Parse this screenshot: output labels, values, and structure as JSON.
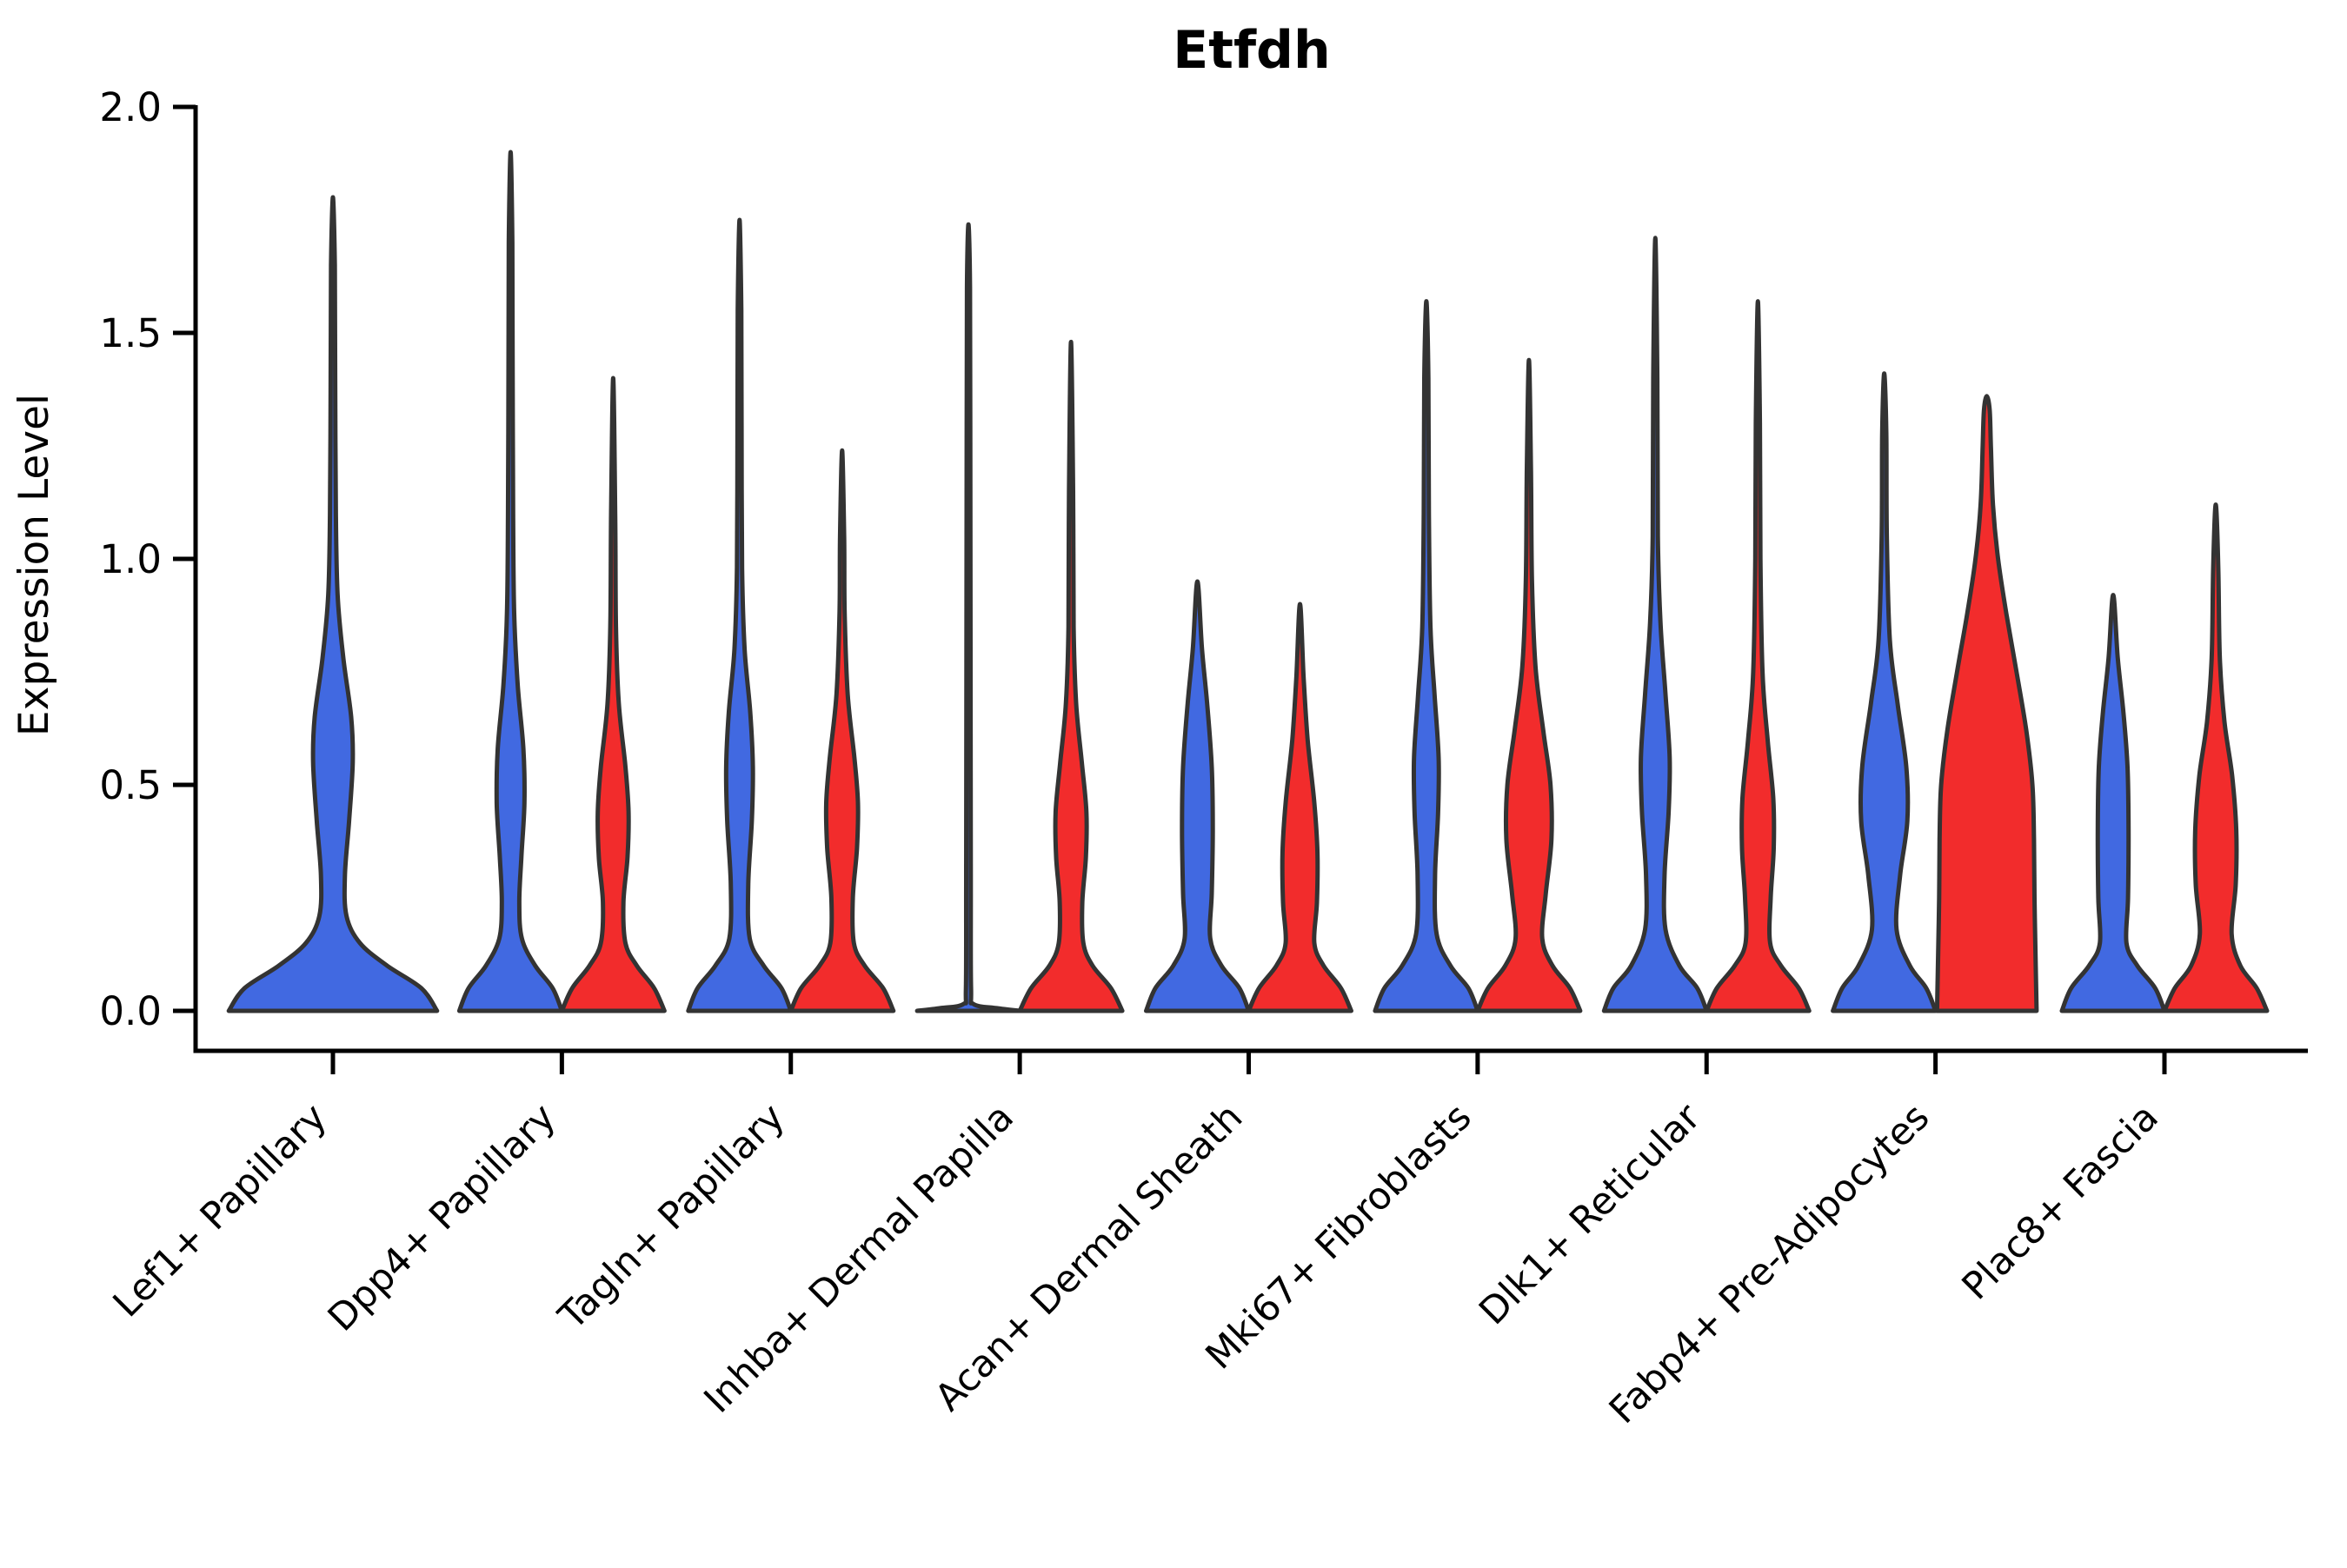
{
  "chart_data": {
    "type": "violin",
    "title": "Etfdh",
    "xlabel": "",
    "ylabel": "Expression Level",
    "ylim": [
      0.0,
      2.0
    ],
    "yticks": [
      {
        "value": 0.0,
        "label": "0.0"
      },
      {
        "value": 0.5,
        "label": "0.5"
      },
      {
        "value": 1.0,
        "label": "1.0"
      },
      {
        "value": 1.5,
        "label": "1.5"
      },
      {
        "value": 2.0,
        "label": "2.0"
      }
    ],
    "grid": false,
    "legend": "none",
    "x_tick_rotation": 45,
    "colors": {
      "blue": "#4169E1",
      "red": "#F22C2C",
      "outline": "#333333",
      "axis": "#000000"
    },
    "categories": [
      "Lef1+ Papillary",
      "Dpp4+ Papillary",
      "Tagln+ Papillary",
      "Inhba+ Dermal Papilla",
      "Acan+ Dermal Sheath",
      "Mki67+ Fibroblasts",
      "Dlk1+ Reticular",
      "Fabp4+ Pre-Adipocytes",
      "Plac8+ Fascia"
    ],
    "violins": [
      {
        "category": 0,
        "color": "blue",
        "position": "solo",
        "max_expression": 1.8,
        "profile": [
          [
            0,
            1.0
          ],
          [
            0.05,
            0.85
          ],
          [
            0.1,
            0.52
          ],
          [
            0.15,
            0.26
          ],
          [
            0.21,
            0.13
          ],
          [
            0.3,
            0.115
          ],
          [
            0.42,
            0.155
          ],
          [
            0.55,
            0.19
          ],
          [
            0.65,
            0.175
          ],
          [
            0.78,
            0.1
          ],
          [
            0.92,
            0.045
          ],
          [
            1.1,
            0.028
          ],
          [
            1.4,
            0.022
          ],
          [
            1.65,
            0.018
          ],
          [
            1.8,
            0.0
          ]
        ]
      },
      {
        "category": 1,
        "color": "blue",
        "position": "left",
        "max_expression": 1.9,
        "profile": [
          [
            0,
            1.0
          ],
          [
            0.05,
            0.82
          ],
          [
            0.1,
            0.48
          ],
          [
            0.16,
            0.22
          ],
          [
            0.24,
            0.17
          ],
          [
            0.34,
            0.21
          ],
          [
            0.46,
            0.27
          ],
          [
            0.58,
            0.25
          ],
          [
            0.72,
            0.14
          ],
          [
            0.88,
            0.07
          ],
          [
            1.1,
            0.05
          ],
          [
            1.45,
            0.04
          ],
          [
            1.7,
            0.035
          ],
          [
            1.9,
            0.0
          ]
        ]
      },
      {
        "category": 1,
        "color": "red",
        "position": "right",
        "max_expression": 1.4,
        "profile": [
          [
            0,
            1.0
          ],
          [
            0.05,
            0.8
          ],
          [
            0.1,
            0.46
          ],
          [
            0.15,
            0.24
          ],
          [
            0.24,
            0.2
          ],
          [
            0.34,
            0.28
          ],
          [
            0.44,
            0.3
          ],
          [
            0.54,
            0.24
          ],
          [
            0.68,
            0.11
          ],
          [
            0.85,
            0.055
          ],
          [
            1.1,
            0.04
          ],
          [
            1.4,
            0.0
          ]
        ]
      },
      {
        "category": 2,
        "color": "blue",
        "position": "left",
        "max_expression": 1.75,
        "profile": [
          [
            0,
            1.0
          ],
          [
            0.05,
            0.82
          ],
          [
            0.1,
            0.47
          ],
          [
            0.16,
            0.2
          ],
          [
            0.28,
            0.17
          ],
          [
            0.42,
            0.24
          ],
          [
            0.54,
            0.26
          ],
          [
            0.66,
            0.21
          ],
          [
            0.8,
            0.1
          ],
          [
            0.98,
            0.05
          ],
          [
            1.3,
            0.04
          ],
          [
            1.55,
            0.035
          ],
          [
            1.75,
            0.0
          ]
        ]
      },
      {
        "category": 2,
        "color": "red",
        "position": "right",
        "max_expression": 1.24,
        "profile": [
          [
            0,
            1.0
          ],
          [
            0.05,
            0.8
          ],
          [
            0.1,
            0.44
          ],
          [
            0.15,
            0.23
          ],
          [
            0.25,
            0.21
          ],
          [
            0.36,
            0.29
          ],
          [
            0.46,
            0.31
          ],
          [
            0.56,
            0.24
          ],
          [
            0.7,
            0.11
          ],
          [
            0.88,
            0.05
          ],
          [
            1.05,
            0.04
          ],
          [
            1.24,
            0.0
          ]
        ]
      },
      {
        "category": 3,
        "color": "blue",
        "position": "left",
        "max_expression": 1.74,
        "profile": [
          [
            0,
            1.0
          ],
          [
            0.006,
            0.55
          ],
          [
            0.015,
            0.1
          ],
          [
            0.05,
            0.05
          ],
          [
            0.3,
            0.045
          ],
          [
            0.8,
            0.04
          ],
          [
            1.3,
            0.035
          ],
          [
            1.6,
            0.03
          ],
          [
            1.74,
            0.0
          ]
        ]
      },
      {
        "category": 3,
        "color": "red",
        "position": "right",
        "max_expression": 1.48,
        "profile": [
          [
            0,
            1.0
          ],
          [
            0.05,
            0.78
          ],
          [
            0.1,
            0.42
          ],
          [
            0.15,
            0.24
          ],
          [
            0.24,
            0.22
          ],
          [
            0.34,
            0.29
          ],
          [
            0.44,
            0.3
          ],
          [
            0.55,
            0.21
          ],
          [
            0.68,
            0.1
          ],
          [
            0.85,
            0.05
          ],
          [
            1.15,
            0.04
          ],
          [
            1.48,
            0.0
          ]
        ]
      },
      {
        "category": 4,
        "color": "blue",
        "position": "left",
        "max_expression": 0.95,
        "profile": [
          [
            0,
            1.0
          ],
          [
            0.05,
            0.82
          ],
          [
            0.1,
            0.47
          ],
          [
            0.16,
            0.25
          ],
          [
            0.26,
            0.28
          ],
          [
            0.4,
            0.3
          ],
          [
            0.54,
            0.28
          ],
          [
            0.68,
            0.19
          ],
          [
            0.8,
            0.09
          ],
          [
            0.95,
            0.0
          ]
        ]
      },
      {
        "category": 4,
        "color": "red",
        "position": "right",
        "max_expression": 0.9,
        "profile": [
          [
            0,
            1.0
          ],
          [
            0.05,
            0.8
          ],
          [
            0.1,
            0.46
          ],
          [
            0.15,
            0.28
          ],
          [
            0.24,
            0.33
          ],
          [
            0.35,
            0.34
          ],
          [
            0.46,
            0.28
          ],
          [
            0.6,
            0.15
          ],
          [
            0.74,
            0.07
          ],
          [
            0.9,
            0.0
          ]
        ]
      },
      {
        "category": 5,
        "color": "blue",
        "position": "left",
        "max_expression": 1.57,
        "profile": [
          [
            0,
            1.0
          ],
          [
            0.05,
            0.82
          ],
          [
            0.1,
            0.47
          ],
          [
            0.17,
            0.2
          ],
          [
            0.3,
            0.17
          ],
          [
            0.44,
            0.23
          ],
          [
            0.56,
            0.24
          ],
          [
            0.7,
            0.16
          ],
          [
            0.85,
            0.08
          ],
          [
            1.1,
            0.05
          ],
          [
            1.4,
            0.04
          ],
          [
            1.57,
            0.0
          ]
        ]
      },
      {
        "category": 5,
        "color": "red",
        "position": "right",
        "max_expression": 1.44,
        "profile": [
          [
            0,
            1.0
          ],
          [
            0.05,
            0.8
          ],
          [
            0.1,
            0.46
          ],
          [
            0.16,
            0.26
          ],
          [
            0.26,
            0.33
          ],
          [
            0.38,
            0.44
          ],
          [
            0.5,
            0.42
          ],
          [
            0.62,
            0.28
          ],
          [
            0.76,
            0.13
          ],
          [
            0.95,
            0.06
          ],
          [
            1.2,
            0.04
          ],
          [
            1.44,
            0.0
          ]
        ]
      },
      {
        "category": 6,
        "color": "blue",
        "position": "left",
        "max_expression": 1.71,
        "profile": [
          [
            0,
            1.0
          ],
          [
            0.05,
            0.82
          ],
          [
            0.1,
            0.47
          ],
          [
            0.18,
            0.2
          ],
          [
            0.3,
            0.18
          ],
          [
            0.44,
            0.26
          ],
          [
            0.56,
            0.28
          ],
          [
            0.7,
            0.2
          ],
          [
            0.86,
            0.1
          ],
          [
            1.05,
            0.05
          ],
          [
            1.4,
            0.04
          ],
          [
            1.71,
            0.0
          ]
        ]
      },
      {
        "category": 6,
        "color": "red",
        "position": "right",
        "max_expression": 1.57,
        "profile": [
          [
            0,
            1.0
          ],
          [
            0.05,
            0.8
          ],
          [
            0.1,
            0.45
          ],
          [
            0.15,
            0.24
          ],
          [
            0.25,
            0.25
          ],
          [
            0.36,
            0.31
          ],
          [
            0.47,
            0.3
          ],
          [
            0.6,
            0.19
          ],
          [
            0.75,
            0.09
          ],
          [
            1.0,
            0.05
          ],
          [
            1.3,
            0.04
          ],
          [
            1.57,
            0.0
          ]
        ]
      },
      {
        "category": 7,
        "color": "blue",
        "position": "left",
        "max_expression": 1.41,
        "profile": [
          [
            0,
            1.0
          ],
          [
            0.05,
            0.82
          ],
          [
            0.1,
            0.5
          ],
          [
            0.18,
            0.24
          ],
          [
            0.3,
            0.31
          ],
          [
            0.42,
            0.45
          ],
          [
            0.54,
            0.43
          ],
          [
            0.68,
            0.26
          ],
          [
            0.82,
            0.11
          ],
          [
            1.05,
            0.05
          ],
          [
            1.28,
            0.04
          ],
          [
            1.41,
            0.0
          ]
        ]
      },
      {
        "category": 7,
        "color": "red",
        "position": "right",
        "max_expression": 1.36,
        "profile": [
          [
            0,
            0.97
          ],
          [
            0.12,
            0.95
          ],
          [
            0.25,
            0.93
          ],
          [
            0.38,
            0.92
          ],
          [
            0.5,
            0.89
          ],
          [
            0.62,
            0.77
          ],
          [
            0.75,
            0.58
          ],
          [
            0.88,
            0.38
          ],
          [
            1.0,
            0.22
          ],
          [
            1.12,
            0.12
          ],
          [
            1.25,
            0.08
          ],
          [
            1.33,
            0.055
          ],
          [
            1.36,
            0.0
          ]
        ]
      },
      {
        "category": 8,
        "color": "blue",
        "position": "left",
        "max_expression": 0.92,
        "profile": [
          [
            0,
            1.0
          ],
          [
            0.05,
            0.82
          ],
          [
            0.1,
            0.47
          ],
          [
            0.15,
            0.26
          ],
          [
            0.25,
            0.29
          ],
          [
            0.4,
            0.3
          ],
          [
            0.54,
            0.28
          ],
          [
            0.66,
            0.2
          ],
          [
            0.78,
            0.09
          ],
          [
            0.92,
            0.0
          ]
        ]
      },
      {
        "category": 8,
        "color": "red",
        "position": "right",
        "max_expression": 1.12,
        "profile": [
          [
            0,
            1.0
          ],
          [
            0.05,
            0.8
          ],
          [
            0.1,
            0.48
          ],
          [
            0.17,
            0.31
          ],
          [
            0.28,
            0.39
          ],
          [
            0.4,
            0.4
          ],
          [
            0.52,
            0.32
          ],
          [
            0.64,
            0.17
          ],
          [
            0.78,
            0.08
          ],
          [
            0.98,
            0.05
          ],
          [
            1.12,
            0.0
          ]
        ]
      }
    ]
  }
}
